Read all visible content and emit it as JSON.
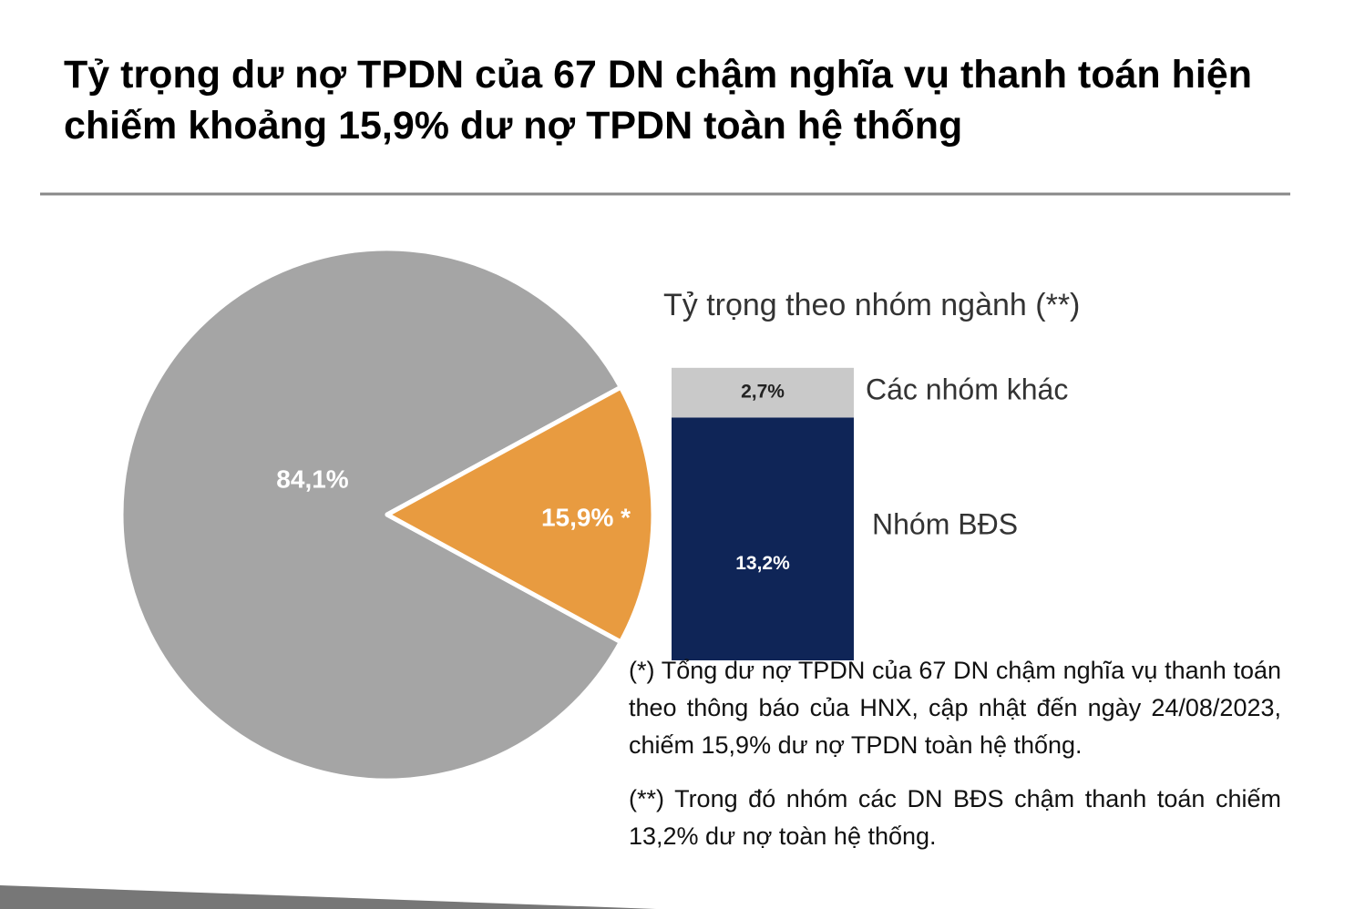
{
  "title": "Tỷ trọng dư nợ TPDN của 67 DN chậm nghĩa vụ thanh toán hiện chiếm khoảng 15,9% dư nợ TPDN toàn hệ thống",
  "chart_data": [
    {
      "type": "pie",
      "values": [
        84.1,
        15.9
      ],
      "value_labels": [
        "84,1%",
        "15,9% *"
      ],
      "colors": [
        "#a5a5a5",
        "#e89b40"
      ]
    },
    {
      "type": "stacked-bar",
      "title": "Tỷ trọng theo nhóm ngành (**)",
      "series": [
        {
          "name": "Nhóm BĐS",
          "color": "#0f2557",
          "values": [
            13.2
          ],
          "value_labels": [
            "13,2%"
          ]
        },
        {
          "name": "Các nhóm khác",
          "color": "#c9c9c9",
          "values": [
            2.7
          ],
          "value_labels": [
            "2,7%"
          ]
        }
      ]
    }
  ],
  "notes": [
    "(*) Tổng dư nợ TPDN của 67 DN chậm nghĩa vụ thanh toán theo thông báo của HNX, cập nhật đến ngày 24/08/2023, chiếm 15,9% dư nợ TPDN toàn hệ thống.",
    "(**) Trong đó nhóm các DN BĐS chậm thanh toán chiếm 13,2% dư nợ toàn hệ thống."
  ]
}
